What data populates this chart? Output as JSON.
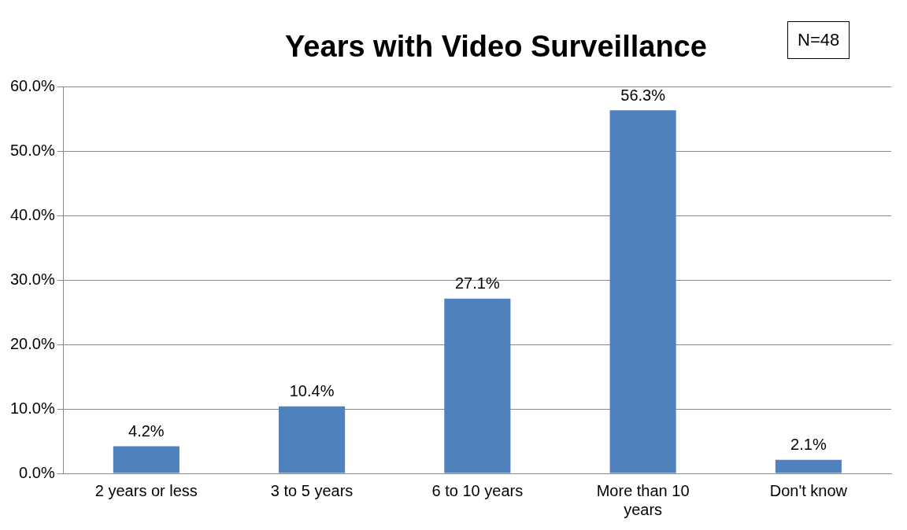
{
  "chart_data": {
    "type": "bar",
    "title": "Years with Video Surveillance",
    "categories": [
      "2 years or less",
      "3 to 5 years",
      "6 to 10 years",
      "More than 10 years",
      "Don't know"
    ],
    "values": [
      4.2,
      10.4,
      27.1,
      56.3,
      2.1
    ],
    "value_labels": [
      "4.2%",
      "10.4%",
      "27.1%",
      "56.3%",
      "2.1%"
    ],
    "color": "#4f81bd",
    "ylim": [
      0,
      60
    ],
    "yticks": [
      {
        "value": 0,
        "label": "0.0%"
      },
      {
        "value": 10,
        "label": "10.0%"
      },
      {
        "value": 20,
        "label": "20.0%"
      },
      {
        "value": 30,
        "label": "30.0%"
      },
      {
        "value": 40,
        "label": "40.0%"
      },
      {
        "value": 50,
        "label": "50.0%"
      },
      {
        "value": 60,
        "label": "60.0%"
      }
    ],
    "grid": "y",
    "annotations": [
      "N=48"
    ]
  }
}
